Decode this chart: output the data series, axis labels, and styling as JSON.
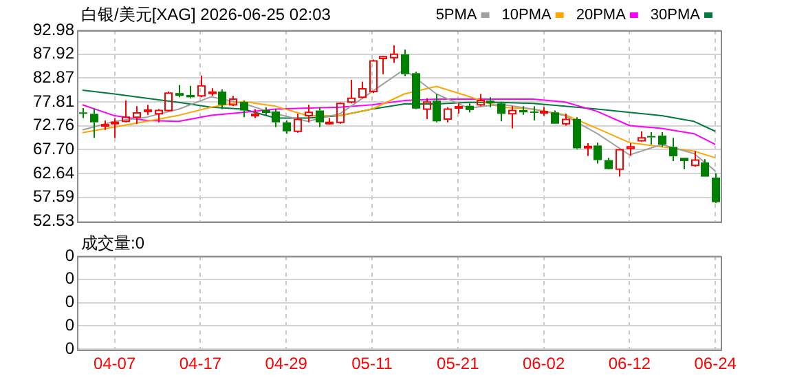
{
  "chart_data": [
    {
      "type": "candlestick",
      "title": "白银/美元[XAG] 2026-06-25 02:03",
      "categories": [
        null,
        null,
        null,
        null,
        null,
        null,
        null,
        null,
        null,
        null,
        null,
        null,
        null,
        null,
        null,
        null,
        null,
        null,
        null,
        null,
        null,
        null,
        null,
        null,
        null,
        null,
        null,
        null,
        null,
        null,
        null,
        null,
        null,
        null,
        null,
        null,
        null,
        null,
        null,
        null,
        null,
        null,
        null,
        null,
        null,
        null,
        null,
        null,
        null,
        null,
        null,
        null,
        null,
        null,
        null,
        null,
        null,
        null,
        null,
        null
      ],
      "ohlc": [
        [
          75.6,
          76.5,
          74.4,
          75.4
        ],
        [
          75.3,
          76.4,
          70.2,
          73.5
        ],
        [
          72.8,
          73.9,
          71.9,
          73.0
        ],
        [
          73.3,
          74.4,
          70.2,
          73.5
        ],
        [
          73.7,
          78.1,
          73.5,
          74.6
        ],
        [
          74.6,
          76.9,
          73.2,
          75.5
        ],
        [
          75.9,
          77.2,
          75.1,
          76.1
        ],
        [
          75.3,
          76.3,
          73.5,
          76.0
        ],
        [
          76.0,
          80.0,
          75.8,
          79.7
        ],
        [
          79.7,
          81.4,
          78.8,
          79.1
        ],
        [
          79.3,
          81.2,
          78.6,
          78.8
        ],
        [
          79.1,
          83.4,
          78.8,
          81.2
        ],
        [
          79.6,
          80.7,
          79.1,
          79.9
        ],
        [
          80.0,
          80.5,
          76.3,
          77.2
        ],
        [
          77.2,
          79.1,
          76.9,
          78.4
        ],
        [
          77.8,
          78.1,
          74.6,
          76.0
        ],
        [
          75.0,
          76.3,
          74.4,
          75.2
        ],
        [
          76.1,
          76.7,
          75.0,
          75.5
        ],
        [
          75.8,
          76.3,
          72.5,
          73.5
        ],
        [
          73.5,
          73.9,
          71.1,
          71.6
        ],
        [
          71.6,
          75.3,
          71.3,
          74.1
        ],
        [
          74.9,
          77.2,
          73.5,
          75.6
        ],
        [
          76.0,
          76.7,
          72.5,
          73.5
        ],
        [
          73.3,
          74.4,
          73.0,
          73.5
        ],
        [
          73.5,
          77.7,
          73.2,
          77.5
        ],
        [
          77.8,
          82.5,
          77.5,
          78.6
        ],
        [
          78.8,
          82.1,
          78.6,
          80.6
        ],
        [
          80.0,
          86.8,
          79.7,
          86.5
        ],
        [
          87.0,
          87.5,
          83.7,
          87.4
        ],
        [
          87.2,
          89.8,
          86.1,
          87.9
        ],
        [
          87.9,
          88.9,
          83.3,
          83.7
        ],
        [
          83.9,
          84.2,
          76.3,
          76.4
        ],
        [
          76.3,
          78.6,
          74.2,
          77.8
        ],
        [
          78.1,
          79.5,
          73.5,
          73.7
        ],
        [
          74.2,
          76.7,
          73.5,
          76.3
        ],
        [
          76.6,
          77.5,
          75.3,
          76.8
        ],
        [
          77.0,
          77.5,
          75.6,
          76.1
        ],
        [
          77.2,
          79.5,
          76.9,
          78.1
        ],
        [
          78.1,
          78.8,
          76.7,
          77.5
        ],
        [
          77.5,
          77.7,
          73.7,
          75.3
        ],
        [
          75.3,
          76.9,
          72.2,
          76.0
        ],
        [
          76.1,
          76.9,
          75.1,
          75.6
        ],
        [
          75.8,
          76.9,
          73.9,
          75.5
        ],
        [
          75.5,
          76.7,
          74.9,
          75.8
        ],
        [
          75.6,
          76.0,
          73.2,
          73.2
        ],
        [
          73.2,
          75.3,
          72.8,
          74.1
        ],
        [
          74.2,
          74.6,
          67.8,
          68.0
        ],
        [
          68.1,
          69.1,
          66.4,
          68.4
        ],
        [
          68.6,
          69.2,
          64.8,
          65.5
        ],
        [
          65.5,
          66.0,
          63.5,
          63.6
        ],
        [
          63.6,
          67.8,
          62.0,
          67.7
        ],
        [
          68.0,
          69.1,
          66.4,
          68.3
        ],
        [
          69.6,
          71.6,
          69.4,
          70.2
        ],
        [
          70.6,
          71.4,
          68.8,
          70.3
        ],
        [
          70.7,
          71.4,
          68.3,
          68.8
        ],
        [
          68.3,
          70.2,
          65.3,
          66.3
        ],
        [
          66.0,
          66.0,
          63.6,
          65.3
        ],
        [
          64.4,
          67.4,
          64.1,
          65.5
        ],
        [
          65.0,
          65.7,
          62.0,
          62.0
        ],
        [
          61.8,
          62.7,
          56.4,
          56.6
        ]
      ],
      "colors": [
        "#008000",
        "#008000",
        "#ff0000",
        "#ff0000",
        "#ff0000",
        "#ff0000",
        "#ff0000",
        "#ff0000",
        "#ff0000",
        "#008000",
        "#008000",
        "#ff0000",
        "#ff0000",
        "#008000",
        "#ff0000",
        "#008000",
        "#ff0000",
        "#008000",
        "#008000",
        "#008000",
        "#ff0000",
        "#ff0000",
        "#008000",
        "#ff0000",
        "#ff0000",
        "#ff0000",
        "#ff0000",
        "#ff0000",
        "#ff0000",
        "#ff0000",
        "#008000",
        "#008000",
        "#ff0000",
        "#008000",
        "#ff0000",
        "#ff0000",
        "#008000",
        "#ff0000",
        "#008000",
        "#008000",
        "#ff0000",
        "#008000",
        "#008000",
        "#ff0000",
        "#008000",
        "#ff0000",
        "#008000",
        "#ff0000",
        "#008000",
        "#008000",
        "#ff0000",
        "#ff0000",
        "#ff0000",
        "#008000",
        "#008000",
        "#008000",
        "#008000",
        "#ff0000",
        "#008000",
        "#008000"
      ],
      "series": [
        {
          "type": "line",
          "name": "5PMA",
          "color": "#a0a0a0",
          "values": [
            71.9,
            null,
            null,
            73.7,
            null,
            null,
            74.6,
            null,
            null,
            76.3,
            null,
            null,
            78.9,
            null,
            null,
            77.5,
            null,
            null,
            75.3,
            null,
            null,
            73.7,
            null,
            null,
            75.3,
            null,
            null,
            80.0,
            null,
            null,
            84.7,
            null,
            null,
            79.5,
            null,
            null,
            76.5,
            null,
            null,
            77.3,
            null,
            null,
            76.3,
            null,
            null,
            74.9,
            null,
            null,
            71.1,
            null,
            null,
            66.6,
            null,
            null,
            68.8,
            null,
            null,
            66.9,
            null,
            63.2
          ]
        },
        {
          "type": "line",
          "name": "10PMA",
          "color": "#ffa500",
          "values": [
            71.3,
            null,
            null,
            72.5,
            null,
            null,
            73.7,
            null,
            null,
            75.0,
            null,
            null,
            76.7,
            null,
            null,
            77.9,
            null,
            null,
            76.9,
            null,
            null,
            74.9,
            null,
            null,
            74.9,
            null,
            null,
            76.3,
            null,
            null,
            79.5,
            null,
            null,
            81.1,
            null,
            null,
            79.0,
            null,
            null,
            76.7,
            null,
            null,
            76.3,
            null,
            null,
            75.1,
            null,
            null,
            72.2,
            null,
            null,
            69.2,
            null,
            null,
            68.3,
            null,
            null,
            67.4,
            null,
            66.0
          ]
        },
        {
          "type": "line",
          "name": "20PMA",
          "color": "#ff00ff",
          "values": [
            77.2,
            null,
            null,
            74.9,
            null,
            null,
            73.9,
            null,
            null,
            73.7,
            null,
            null,
            75.0,
            null,
            null,
            75.6,
            null,
            null,
            76.3,
            null,
            null,
            76.5,
            null,
            null,
            76.7,
            null,
            null,
            77.2,
            null,
            null,
            78.1,
            null,
            null,
            78.4,
            null,
            null,
            78.4,
            null,
            null,
            78.4,
            null,
            null,
            78.4,
            null,
            null,
            77.8,
            null,
            null,
            75.8,
            null,
            null,
            72.8,
            null,
            null,
            72.2,
            null,
            null,
            71.1,
            null,
            68.8
          ]
        },
        {
          "type": "line",
          "name": "30PMA",
          "color": "#007b3c",
          "values": [
            80.3,
            null,
            null,
            79.5,
            null,
            null,
            78.6,
            null,
            null,
            77.7,
            null,
            null,
            76.7,
            null,
            null,
            76.3,
            null,
            null,
            74.4,
            null,
            null,
            74.4,
            null,
            null,
            74.9,
            null,
            null,
            76.3,
            null,
            null,
            77.4,
            null,
            null,
            77.4,
            null,
            null,
            77.7,
            null,
            null,
            77.7,
            null,
            null,
            77.5,
            null,
            null,
            76.9,
            null,
            null,
            76.3,
            null,
            null,
            75.6,
            null,
            null,
            74.9,
            null,
            null,
            73.7,
            null,
            71.6
          ]
        }
      ],
      "ylim": [
        52.53,
        92.98
      ],
      "yticks": [
        52.53,
        57.59,
        62.64,
        {
          "value": 67.7,
          "label": "67.70"
        },
        72.76,
        77.81,
        82.87,
        87.92,
        92.98
      ],
      "grid": true,
      "legend": "top right",
      "marker": "none"
    },
    {
      "type": "bar",
      "title": "成交量:0",
      "categories": [
        null,
        null,
        null,
        "04-07",
        null,
        null,
        null,
        null,
        null,
        null,
        null,
        "04-17",
        null,
        null,
        null,
        null,
        null,
        null,
        null,
        "04-29",
        null,
        null,
        null,
        null,
        null,
        null,
        null,
        "05-11",
        null,
        null,
        null,
        null,
        null,
        null,
        null,
        "05-21",
        null,
        null,
        null,
        null,
        null,
        null,
        null,
        "06-02",
        null,
        null,
        null,
        null,
        null,
        null,
        null,
        "06-12",
        null,
        null,
        null,
        null,
        null,
        null,
        null,
        "06-24"
      ],
      "values": [
        0,
        0,
        0,
        0,
        0,
        0,
        0,
        0,
        0,
        0,
        0,
        0,
        0,
        0,
        0,
        0,
        0,
        0,
        0,
        0,
        0,
        0,
        0,
        0,
        0,
        0,
        0,
        0,
        0,
        0,
        0,
        0,
        0,
        0,
        0,
        0,
        0,
        0,
        0,
        0,
        0,
        0,
        0,
        0,
        0,
        0,
        0,
        0,
        0,
        0,
        0,
        0,
        0,
        0,
        0,
        0,
        0,
        0,
        0,
        0
      ],
      "ylim": [
        0,
        0.4
      ],
      "yticks": [
        0,
        {
          "value": 0.1,
          "label": "0"
        },
        {
          "value": 0.2,
          "label": "0"
        },
        {
          "value": 0.3,
          "label": "0"
        },
        {
          "value": 0.4,
          "label": "0"
        }
      ],
      "grid": true,
      "legend": false
    }
  ]
}
